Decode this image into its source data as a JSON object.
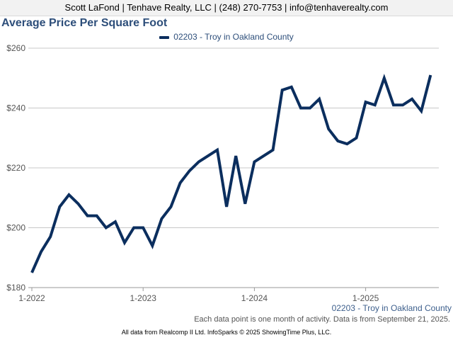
{
  "header": {
    "text": "Scott LaFond | Tenhave Realty, LLC | (248) 270-7753 | info@tenhaverealty.com"
  },
  "chart_data": {
    "type": "line",
    "title": "Average Price Per Square Foot",
    "xlabel": "",
    "ylabel": "",
    "ylim": [
      180,
      260
    ],
    "y_ticks": [
      180,
      200,
      220,
      240,
      260
    ],
    "y_tick_labels": [
      "$180",
      "$200",
      "$220",
      "$240",
      "$260"
    ],
    "x_ticks": [
      "1-2022",
      "1-2023",
      "1-2024",
      "1-2025"
    ],
    "grid": true,
    "legend_position": "top-center",
    "line_color": "#0b2e5e",
    "series": [
      {
        "name": "02203 - Troy in Oakland County",
        "x": [
          "2022-01",
          "2022-02",
          "2022-03",
          "2022-04",
          "2022-05",
          "2022-06",
          "2022-07",
          "2022-08",
          "2022-09",
          "2022-10",
          "2022-11",
          "2022-12",
          "2023-01",
          "2023-02",
          "2023-03",
          "2023-04",
          "2023-05",
          "2023-06",
          "2023-07",
          "2023-08",
          "2023-09",
          "2023-10",
          "2023-11",
          "2023-12",
          "2024-01",
          "2024-02",
          "2024-03",
          "2024-04",
          "2024-05",
          "2024-06",
          "2024-07",
          "2024-08",
          "2024-09",
          "2024-10",
          "2024-11",
          "2024-12",
          "2025-01",
          "2025-02",
          "2025-03",
          "2025-04",
          "2025-05",
          "2025-06",
          "2025-07",
          "2025-08"
        ],
        "values": [
          185,
          192,
          197,
          207,
          211,
          208,
          204,
          204,
          200,
          202,
          195,
          200,
          200,
          194,
          203,
          207,
          215,
          219,
          222,
          224,
          226,
          207,
          224,
          208,
          222,
          224,
          226,
          246,
          247,
          240,
          240,
          243,
          233,
          229,
          228,
          230,
          242,
          241,
          250,
          241,
          241,
          243,
          239,
          251
        ]
      }
    ]
  },
  "source_label": "02203 - Troy in Oakland County",
  "note": "Each data point is one month of activity. Data is from September 21, 2025.",
  "footer": "All data from Realcomp II Ltd. InfoSparks © 2025 ShowingTime Plus, LLC."
}
